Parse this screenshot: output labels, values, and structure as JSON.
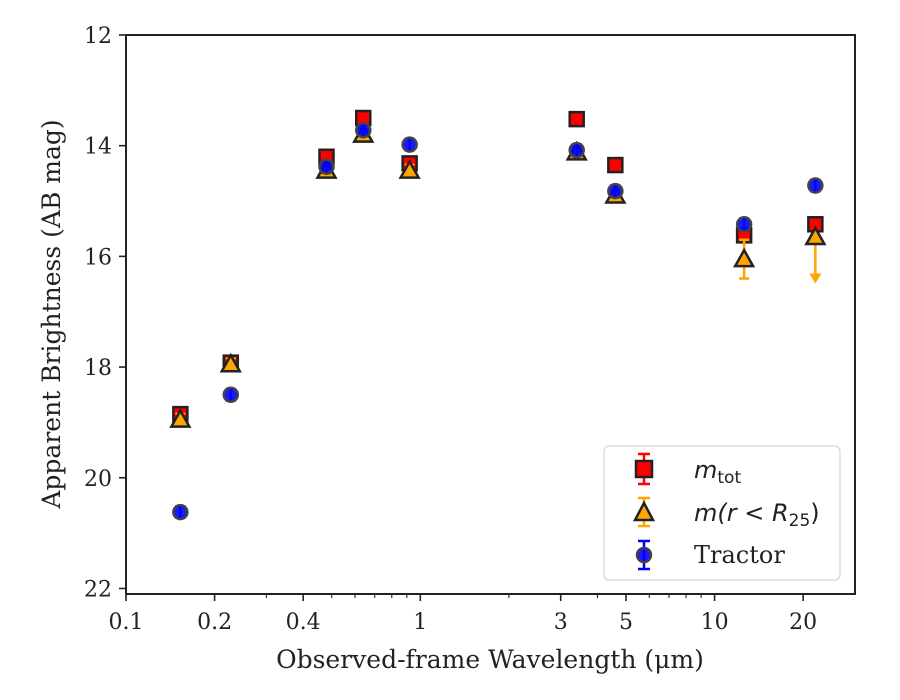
{
  "chart_data": {
    "type": "scatter",
    "xlabel": "Observed-frame Wavelength (μm)",
    "ylabel": "Apparent Brightness (AB mag)",
    "x_scale": "log",
    "xlim": [
      0.1,
      30
    ],
    "ylim": [
      22.1,
      12
    ],
    "y_inverted": true,
    "x_ticks": [
      0.1,
      0.2,
      0.4,
      1,
      3,
      5,
      10,
      20
    ],
    "x_tick_labels": [
      "0.1",
      "0.2",
      "0.4",
      "1",
      "3",
      "5",
      "10",
      "20"
    ],
    "y_ticks": [
      12,
      14,
      16,
      18,
      20,
      22
    ],
    "y_tick_labels": [
      "12",
      "14",
      "16",
      "18",
      "20",
      "22"
    ],
    "grid": false,
    "legend_position": "lower-right",
    "series": [
      {
        "name": "m_tot",
        "marker": "square",
        "color": "#ff0000",
        "edge_color": "#222222",
        "points": [
          {
            "x": 0.153,
            "y": 18.85
          },
          {
            "x": 0.227,
            "y": 17.92
          },
          {
            "x": 0.48,
            "y": 14.2
          },
          {
            "x": 0.64,
            "y": 13.5
          },
          {
            "x": 0.92,
            "y": 14.32
          },
          {
            "x": 3.4,
            "y": 13.52
          },
          {
            "x": 4.6,
            "y": 14.35
          },
          {
            "x": 12.6,
            "y": 15.62
          },
          {
            "x": 22.0,
            "y": 15.42
          }
        ]
      },
      {
        "name": "m(r < R25)",
        "marker": "triangle",
        "color": "#ffa500",
        "edge_color": "#222222",
        "points": [
          {
            "x": 0.153,
            "y": 18.95
          },
          {
            "x": 0.227,
            "y": 17.95
          },
          {
            "x": 0.48,
            "y": 14.45
          },
          {
            "x": 0.64,
            "y": 13.8
          },
          {
            "x": 0.92,
            "y": 14.45
          },
          {
            "x": 3.4,
            "y": 14.12
          },
          {
            "x": 4.6,
            "y": 14.9
          },
          {
            "x": 12.6,
            "y": 16.05,
            "err": 0.35
          },
          {
            "x": 22.0,
            "y": 15.65,
            "upper_limit": true
          }
        ]
      },
      {
        "name": "Tractor",
        "marker": "circle",
        "color": "#0000ff",
        "edge_color": "#444444",
        "points": [
          {
            "x": 0.153,
            "y": 20.62
          },
          {
            "x": 0.227,
            "y": 18.5
          },
          {
            "x": 0.48,
            "y": 14.38
          },
          {
            "x": 0.64,
            "y": 13.72
          },
          {
            "x": 0.92,
            "y": 13.98
          },
          {
            "x": 3.4,
            "y": 14.08
          },
          {
            "x": 4.6,
            "y": 14.82
          },
          {
            "x": 12.6,
            "y": 15.42
          },
          {
            "x": 22.0,
            "y": 14.72
          }
        ]
      }
    ]
  },
  "legend": {
    "m_tot_main": "m",
    "m_tot_sub": "tot",
    "m_r_main": "m(r < R",
    "m_r_sub": "25",
    "m_r_close": ")",
    "tractor": "Tractor"
  }
}
